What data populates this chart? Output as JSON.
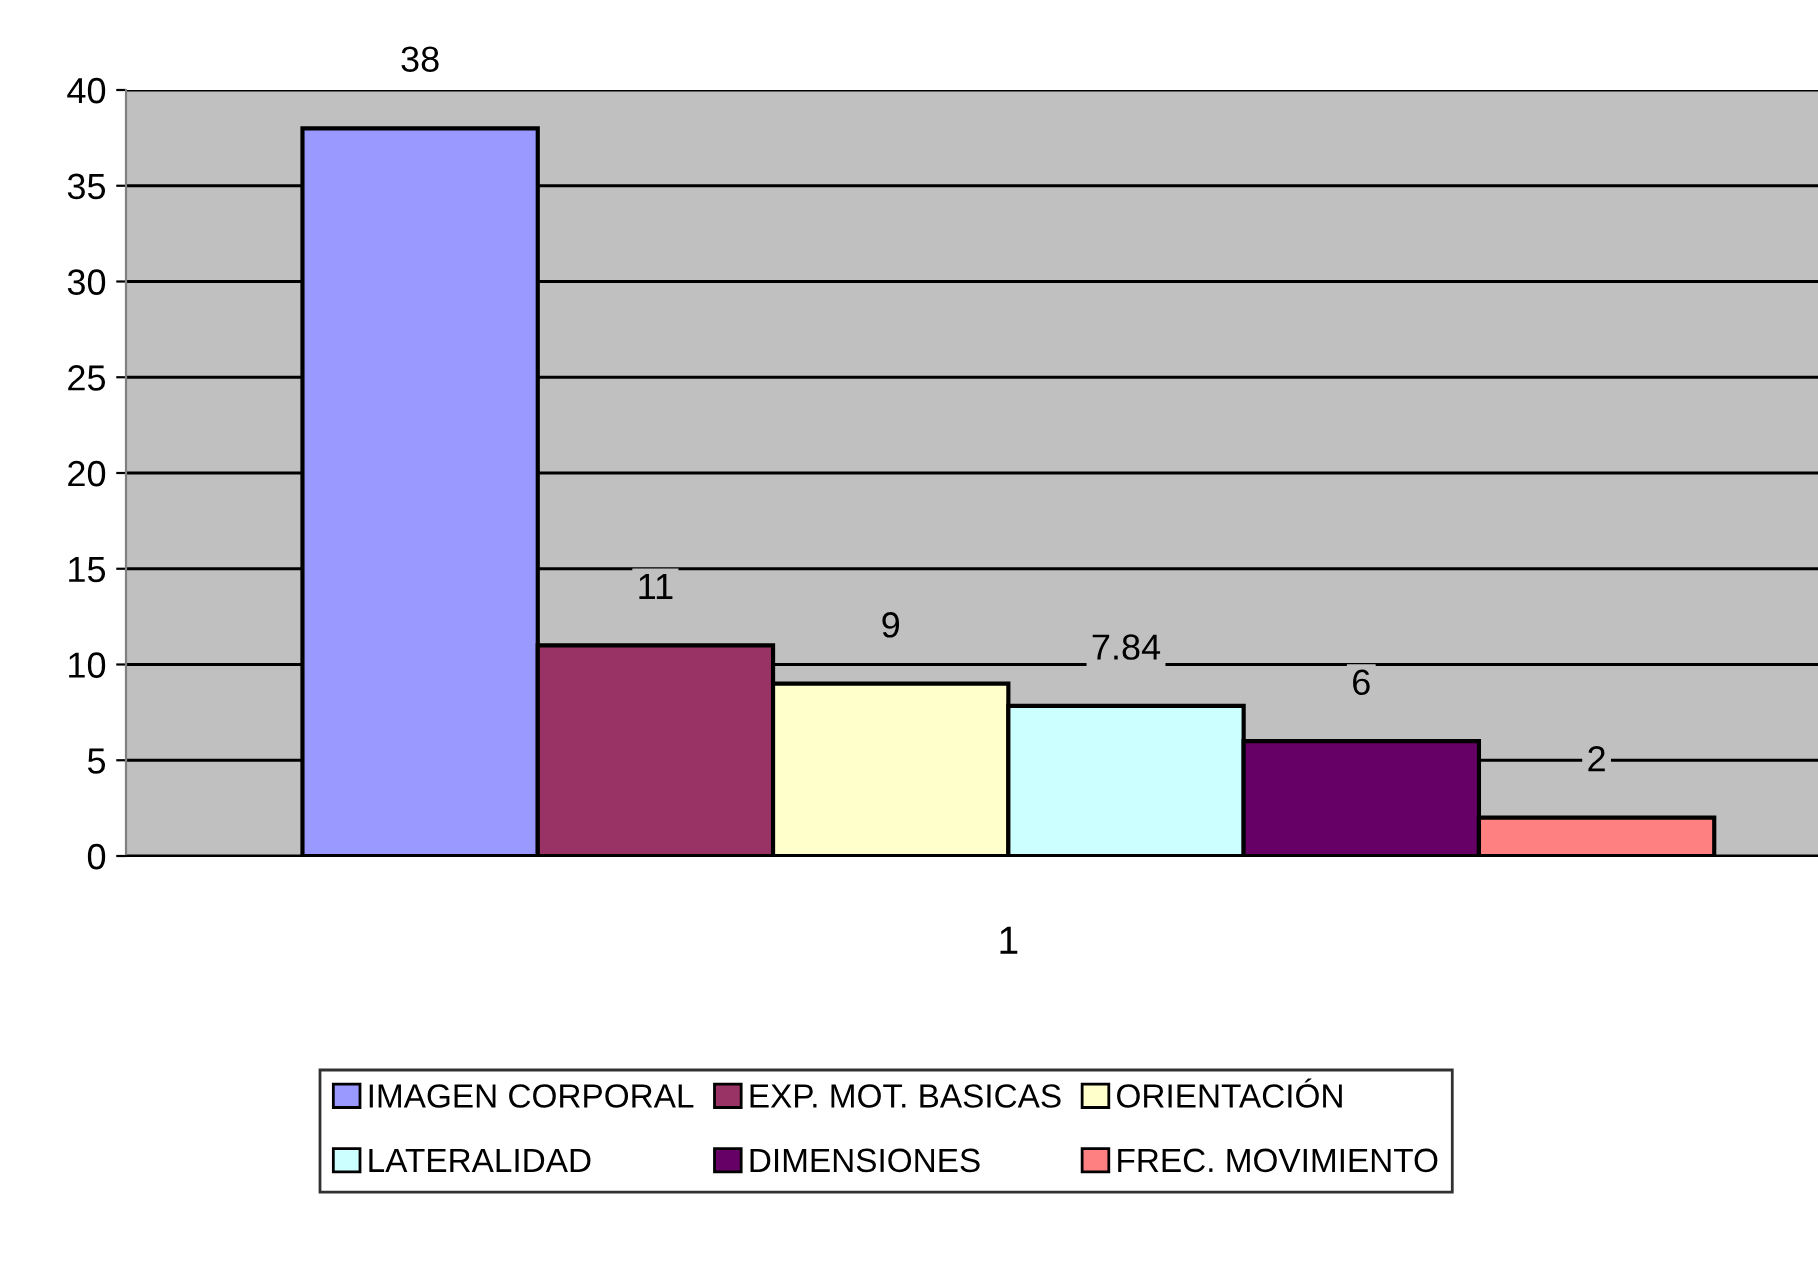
{
  "chart_data": {
    "type": "bar",
    "categories": [
      "1"
    ],
    "series": [
      {
        "name": "IMAGEN CORPORAL",
        "color": "#9999ff",
        "values": [
          38
        ]
      },
      {
        "name": "EXP. MOT. BASICAS",
        "color": "#993366",
        "values": [
          11
        ]
      },
      {
        "name": "ORIENTACIÓN",
        "color": "#ffffcc",
        "values": [
          9
        ]
      },
      {
        "name": "LATERALIDAD",
        "color": "#ccffff",
        "values": [
          7.84
        ]
      },
      {
        "name": "DIMENSIONES",
        "color": "#660066",
        "values": [
          6
        ]
      },
      {
        "name": "FREC. MOVIMIENTO",
        "color": "#ff8080",
        "values": [
          2
        ]
      }
    ],
    "ylim": [
      0,
      40
    ],
    "yticks": [
      0,
      5,
      10,
      15,
      20,
      25,
      30,
      35,
      40
    ],
    "grid": "y",
    "legend": "bottom",
    "data_labels": true
  }
}
